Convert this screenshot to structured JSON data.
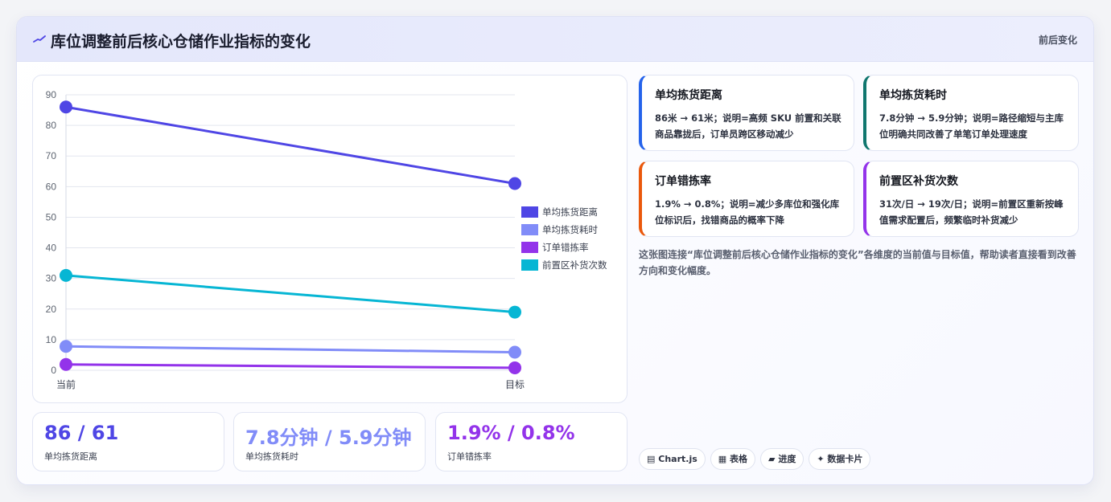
{
  "header": {
    "title": "库位调整前后核心仓储作业指标的变化",
    "tag": "前后变化"
  },
  "chart_data": {
    "type": "line",
    "categories": [
      "当前",
      "目标"
    ],
    "ylim": [
      0,
      90
    ],
    "yticks": [
      0,
      10,
      20,
      30,
      40,
      50,
      60,
      70,
      80,
      90
    ],
    "grid": true,
    "legend_position": "right",
    "series": [
      {
        "name": "单均拣货距离",
        "values": [
          86,
          61
        ],
        "color": "#4f46e5"
      },
      {
        "name": "单均拣货耗时",
        "values": [
          7.8,
          5.9
        ],
        "color": "#818cf8"
      },
      {
        "name": "订单错拣率",
        "values": [
          1.9,
          0.8
        ],
        "color": "#9333ea"
      },
      {
        "name": "前置区补货次数",
        "values": [
          31,
          19
        ],
        "color": "#06b6d4"
      }
    ]
  },
  "stats": [
    {
      "value": "86 / 61",
      "label": "单均拣货距离",
      "color": "#4f46e5"
    },
    {
      "value": "7.8分钟 / 5.9分钟",
      "label": "单均拣货耗时",
      "color": "#818cf8"
    },
    {
      "value": "1.9% / 0.8%",
      "label": "订单错拣率",
      "color": "#9333ea"
    }
  ],
  "metrics": [
    {
      "title": "单均拣货距离",
      "desc": "86米 → 61米；说明=高频 SKU 前置和关联商品靠拢后，订单员跨区移动减少",
      "color": "#2563eb"
    },
    {
      "title": "单均拣货耗时",
      "desc": "7.8分钟 → 5.9分钟；说明=路径缩短与主库位明确共同改善了单笔订单处理速度",
      "color": "#0f766e"
    },
    {
      "title": "订单错拣率",
      "desc": "1.9% → 0.8%；说明=减少多库位和强化库位标识后，找错商品的概率下降",
      "color": "#ea580c"
    },
    {
      "title": "前置区补货次数",
      "desc": "31次/日 → 19次/日；说明=前置区重新按峰值需求配置后，频繁临时补货减少",
      "color": "#9333ea"
    }
  ],
  "note": "这张图连接“库位调整前后核心仓储作业指标的变化”各维度的当前值与目标值，帮助读者直接看到改善方向和变化幅度。",
  "pills": [
    {
      "icon": "chart-icon",
      "glyph": "▤",
      "label": "Chart.js"
    },
    {
      "icon": "table-icon",
      "glyph": "▦",
      "label": "表格"
    },
    {
      "icon": "progress-icon",
      "glyph": "▰",
      "label": "进度"
    },
    {
      "icon": "sparkle-icon",
      "glyph": "✦",
      "label": "数据卡片"
    }
  ]
}
